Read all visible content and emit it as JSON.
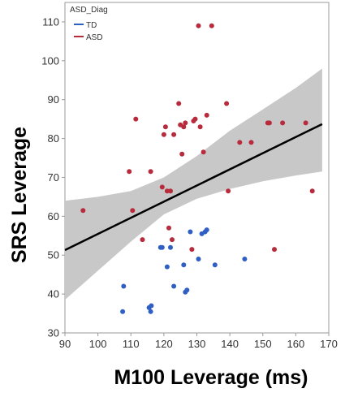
{
  "chart_data": {
    "type": "scatter",
    "xlabel": "M100 Leverage (ms)",
    "ylabel": "SRS Leverage",
    "xlim": [
      90,
      170
    ],
    "ylim": [
      30,
      115
    ],
    "x_ticks": [
      90,
      100,
      110,
      120,
      130,
      140,
      150,
      160,
      170
    ],
    "y_ticks": [
      30,
      40,
      50,
      60,
      70,
      80,
      90,
      100,
      110
    ],
    "grid": false,
    "legend": {
      "title": "ASD_Diag",
      "placement": "top-left",
      "entries": [
        {
          "label": "TD",
          "color": "#2f5fc4"
        },
        {
          "label": "ASD",
          "color": "#b72b3d"
        }
      ]
    },
    "series": [
      {
        "name": "TD",
        "color": "#2f5fc4",
        "points": [
          [
            107.5,
            35.5
          ],
          [
            107.8,
            42
          ],
          [
            115.5,
            36.5
          ],
          [
            116,
            35.5
          ],
          [
            116.2,
            37
          ],
          [
            119,
            52
          ],
          [
            119.5,
            52
          ],
          [
            121,
            47
          ],
          [
            122,
            52
          ],
          [
            123,
            42
          ],
          [
            126,
            47.5
          ],
          [
            126.5,
            40.5
          ],
          [
            127,
            41
          ],
          [
            128,
            56
          ],
          [
            130.5,
            49
          ],
          [
            131.5,
            55.5
          ],
          [
            132.5,
            56
          ],
          [
            133,
            56.5
          ],
          [
            135.5,
            47.5
          ],
          [
            144.5,
            49
          ]
        ]
      },
      {
        "name": "ASD",
        "color": "#b72b3d",
        "points": [
          [
            95.5,
            61.5
          ],
          [
            109.5,
            71.5
          ],
          [
            110.5,
            61.5
          ],
          [
            111.5,
            85
          ],
          [
            113.5,
            54
          ],
          [
            116,
            71.5
          ],
          [
            119.5,
            67.5
          ],
          [
            120,
            81
          ],
          [
            120.5,
            83
          ],
          [
            121,
            66.5
          ],
          [
            121.5,
            57
          ],
          [
            122,
            66.5
          ],
          [
            122.5,
            54
          ],
          [
            123,
            81
          ],
          [
            124.5,
            89
          ],
          [
            125,
            83.5
          ],
          [
            125.5,
            76
          ],
          [
            126,
            83
          ],
          [
            126.5,
            84
          ],
          [
            128.5,
            51.5
          ],
          [
            129,
            84.5
          ],
          [
            129.5,
            85
          ],
          [
            130.5,
            109
          ],
          [
            131,
            83
          ],
          [
            132,
            76.5
          ],
          [
            133,
            86
          ],
          [
            134.5,
            109
          ],
          [
            139,
            89
          ],
          [
            139.5,
            66.5
          ],
          [
            143,
            79
          ],
          [
            146.5,
            79
          ],
          [
            151.5,
            84
          ],
          [
            152,
            84
          ],
          [
            153.5,
            51.5
          ],
          [
            156,
            84
          ],
          [
            163,
            84
          ],
          [
            165,
            66.5
          ]
        ]
      }
    ],
    "fit_line": {
      "x": [
        90,
        168
      ],
      "y": [
        51.3,
        83.7
      ],
      "color": "#000000"
    },
    "confidence_band": {
      "color": "#c8c8c8",
      "x": [
        90,
        100,
        110,
        120,
        130,
        140,
        150,
        160,
        168
      ],
      "lower": [
        38.5,
        46,
        53.5,
        60.5,
        64.5,
        67,
        69,
        70.5,
        71.5
      ],
      "upper": [
        64,
        65,
        66.5,
        70,
        75.5,
        82,
        87.5,
        93,
        98
      ]
    }
  }
}
